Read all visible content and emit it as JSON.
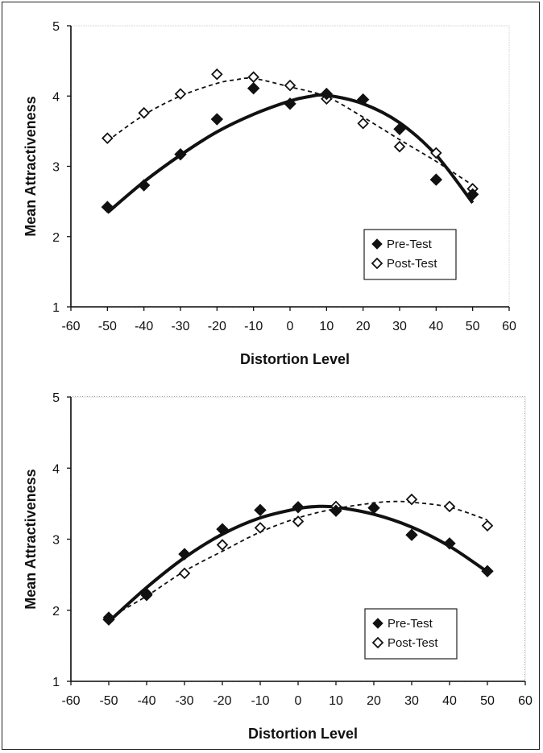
{
  "chart_data": [
    {
      "type": "scatter",
      "xlabel": "Distortion Level",
      "ylabel": "Mean Attractiveness",
      "xlim": [
        -60,
        60
      ],
      "ylim": [
        1,
        5
      ],
      "xticks": [
        "-60",
        "-50",
        "-40",
        "-30",
        "-20",
        "-10",
        "0",
        "10",
        "20",
        "30",
        "40",
        "50",
        "60"
      ],
      "yticks": [
        "1",
        "2",
        "3",
        "4",
        "5"
      ],
      "legend_position": "bottom-right",
      "x": [
        -50,
        -40,
        -30,
        -20,
        -10,
        0,
        10,
        20,
        30,
        40,
        50
      ],
      "series": [
        {
          "name": "Pre-Test",
          "marker": "filled-diamond",
          "fit": "solid",
          "color": "#111111",
          "values": [
            2.42,
            2.73,
            3.17,
            3.67,
            4.11,
            3.89,
            4.03,
            3.95,
            3.53,
            2.81,
            2.6
          ],
          "fit_points": [
            [
              -50,
              2.34
            ],
            [
              -40,
              2.78
            ],
            [
              -30,
              3.16
            ],
            [
              -20,
              3.49
            ],
            [
              -10,
              3.74
            ],
            [
              0,
              3.93
            ],
            [
              5,
              3.99
            ],
            [
              10,
              4.01
            ],
            [
              20,
              3.89
            ],
            [
              30,
              3.62
            ],
            [
              40,
              3.16
            ],
            [
              50,
              2.48
            ]
          ]
        },
        {
          "name": "Post-Test",
          "marker": "open-diamond",
          "fit": "dashed",
          "color": "#111111",
          "values": [
            3.4,
            3.76,
            4.03,
            4.31,
            4.27,
            4.15,
            3.96,
            3.61,
            3.28,
            3.19,
            2.68
          ],
          "fit_points": [
            [
              -50,
              3.36
            ],
            [
              -40,
              3.73
            ],
            [
              -30,
              4.0
            ],
            [
              -20,
              4.18
            ],
            [
              -15,
              4.23
            ],
            [
              -10,
              4.25
            ],
            [
              0,
              4.13
            ],
            [
              10,
              3.99
            ],
            [
              20,
              3.7
            ],
            [
              30,
              3.38
            ],
            [
              40,
              3.07
            ],
            [
              50,
              2.73
            ]
          ]
        }
      ]
    },
    {
      "type": "scatter",
      "xlabel": "Distortion Level",
      "ylabel": "Mean Attractiveness",
      "xlim": [
        -60,
        60
      ],
      "ylim": [
        1,
        5
      ],
      "xticks": [
        "-60",
        "-50",
        "-40",
        "-30",
        "-20",
        "-10",
        "0",
        "10",
        "20",
        "30",
        "40",
        "50",
        "60"
      ],
      "yticks": [
        "1",
        "2",
        "3",
        "4",
        "5"
      ],
      "legend_position": "bottom-right",
      "x": [
        -50,
        -40,
        -30,
        -20,
        -10,
        0,
        10,
        20,
        30,
        40,
        50
      ],
      "series": [
        {
          "name": "Pre-Test",
          "marker": "filled-diamond",
          "fit": "solid",
          "color": "#111111",
          "values": [
            1.87,
            2.23,
            2.79,
            3.14,
            3.41,
            3.45,
            3.4,
            3.44,
            3.06,
            2.94,
            2.55
          ],
          "fit_points": [
            [
              -50,
              1.84
            ],
            [
              -40,
              2.32
            ],
            [
              -30,
              2.74
            ],
            [
              -20,
              3.07
            ],
            [
              -10,
              3.3
            ],
            [
              0,
              3.43
            ],
            [
              5,
              3.46
            ],
            [
              10,
              3.45
            ],
            [
              20,
              3.35
            ],
            [
              30,
              3.17
            ],
            [
              40,
              2.9
            ],
            [
              50,
              2.54
            ]
          ]
        },
        {
          "name": "Post-Test",
          "marker": "open-diamond",
          "fit": "dashed",
          "color": "#111111",
          "values": [
            1.9,
            2.21,
            2.52,
            2.92,
            3.16,
            3.25,
            3.46,
            3.44,
            3.56,
            3.46,
            3.19
          ],
          "fit_points": [
            [
              -50,
              1.89
            ],
            [
              -40,
              2.2
            ],
            [
              -30,
              2.55
            ],
            [
              -20,
              2.83
            ],
            [
              -10,
              3.1
            ],
            [
              0,
              3.3
            ],
            [
              10,
              3.43
            ],
            [
              20,
              3.51
            ],
            [
              25,
              3.53
            ],
            [
              30,
              3.52
            ],
            [
              40,
              3.45
            ],
            [
              50,
              3.27
            ]
          ]
        }
      ]
    }
  ]
}
